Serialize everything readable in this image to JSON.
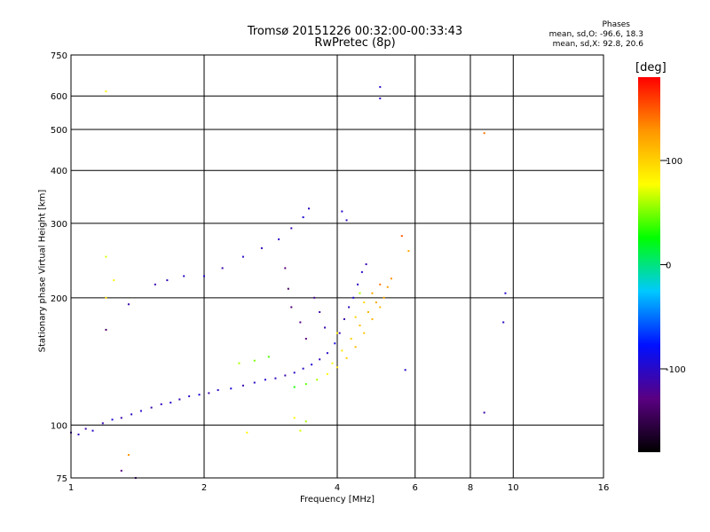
{
  "title_line1": "Tromsø 20151226 00:32:00-00:33:43",
  "title_line2": "RwPretec (8p)",
  "phases": {
    "title": "Phases",
    "o_line": "mean, sd,O: -96.6, 18.3",
    "x_line": "mean, sd,X: 92.8, 20.6"
  },
  "colorbar": {
    "unit": "[deg]",
    "ticks": [
      "100",
      "0",
      "-100"
    ],
    "tick_values": [
      100,
      0,
      -100
    ],
    "range": [
      -180,
      180
    ],
    "colors": [
      "#000000",
      "#5a0082",
      "#0010ff",
      "#00c8ff",
      "#00ff00",
      "#ffff00",
      "#ff9600",
      "#ff0000"
    ]
  },
  "chart_data": {
    "type": "scatter",
    "title": "Tromsø 20151226 00:32:00-00:33:43\nRwPretec (8p)",
    "xlabel": "Frequency [MHz]",
    "ylabel": "Stationary phase Virtual Height [km]",
    "x_scale": "log",
    "y_scale": "log",
    "xlim": [
      1,
      16
    ],
    "ylim": [
      75,
      750
    ],
    "x_ticks": [
      "1",
      "2",
      "4",
      "6",
      "8",
      "10",
      "16"
    ],
    "x_tick_values": [
      1,
      2,
      4,
      6,
      8,
      10,
      16
    ],
    "y_ticks": [
      "75",
      "100",
      "200",
      "300",
      "400",
      "500",
      "600",
      "750"
    ],
    "y_tick_values": [
      75,
      100,
      200,
      300,
      400,
      500,
      600,
      750
    ],
    "grid": true,
    "color_encodes": "phase [deg]",
    "series": [
      {
        "points": [
          [
            1.0,
            96,
            -110
          ],
          [
            1.04,
            95,
            -105
          ],
          [
            1.08,
            98,
            -112
          ],
          [
            1.12,
            97,
            -100
          ],
          [
            1.18,
            101,
            -108
          ],
          [
            1.24,
            103,
            -95
          ],
          [
            1.3,
            104,
            -110
          ],
          [
            1.37,
            106,
            -102
          ],
          [
            1.44,
            108,
            -98
          ],
          [
            1.52,
            110,
            -112
          ],
          [
            1.6,
            112,
            -104
          ],
          [
            1.68,
            113,
            -96
          ],
          [
            1.76,
            115,
            -108
          ],
          [
            1.85,
            117,
            -100
          ],
          [
            1.95,
            118,
            -92
          ],
          [
            2.05,
            119,
            -110
          ],
          [
            2.15,
            121,
            -102
          ],
          [
            2.3,
            122,
            -95
          ],
          [
            2.45,
            124,
            -108
          ],
          [
            2.6,
            126,
            -100
          ],
          [
            2.75,
            128,
            -97
          ],
          [
            2.9,
            129,
            -105
          ],
          [
            3.05,
            131,
            -110
          ],
          [
            3.2,
            133,
            -98
          ],
          [
            3.35,
            136,
            -102
          ],
          [
            3.5,
            139,
            -95
          ],
          [
            3.65,
            143,
            -108
          ],
          [
            3.8,
            148,
            -100
          ],
          [
            3.95,
            156,
            -92
          ],
          [
            4.05,
            165,
            -105
          ],
          [
            4.15,
            178,
            -110
          ],
          [
            4.25,
            190,
            -100
          ],
          [
            4.35,
            200,
            -96
          ],
          [
            4.45,
            215,
            -105
          ],
          [
            4.55,
            230,
            -100
          ],
          [
            4.65,
            240,
            -108
          ],
          [
            2.0,
            225,
            -100
          ],
          [
            2.2,
            235,
            -110
          ],
          [
            2.45,
            250,
            -98
          ],
          [
            2.7,
            262,
            -105
          ],
          [
            2.95,
            275,
            -100
          ],
          [
            3.15,
            292,
            -108
          ],
          [
            3.35,
            310,
            -96
          ],
          [
            3.45,
            325,
            -102
          ],
          [
            3.05,
            235,
            -130
          ],
          [
            3.1,
            210,
            -140
          ],
          [
            3.15,
            190,
            -135
          ],
          [
            3.3,
            175,
            -125
          ],
          [
            3.4,
            160,
            -130
          ],
          [
            3.55,
            200,
            -120
          ],
          [
            3.65,
            185,
            -115
          ],
          [
            3.75,
            170,
            -110
          ],
          [
            1.55,
            215,
            -110
          ],
          [
            1.65,
            220,
            -105
          ],
          [
            1.8,
            225,
            -100
          ],
          [
            1.2,
            168,
            -140
          ],
          [
            1.35,
            193,
            -110
          ],
          [
            4.1,
            320,
            -100
          ],
          [
            4.2,
            305,
            -105
          ],
          [
            5.0,
            630,
            -100
          ],
          [
            5.0,
            592,
            -100
          ],
          [
            9.6,
            205,
            -100
          ],
          [
            9.5,
            175,
            -100
          ],
          [
            8.6,
            107,
            -110
          ],
          [
            5.7,
            135,
            -100
          ],
          [
            1.3,
            78,
            -130
          ],
          [
            1.4,
            75,
            -120
          ]
        ]
      },
      {
        "points": [
          [
            3.2,
            123,
            30
          ],
          [
            3.4,
            125,
            45
          ],
          [
            3.6,
            128,
            60
          ],
          [
            3.8,
            132,
            80
          ],
          [
            4.0,
            137,
            95
          ],
          [
            4.2,
            144,
            100
          ],
          [
            4.4,
            153,
            110
          ],
          [
            4.6,
            165,
            105
          ],
          [
            4.8,
            178,
            115
          ],
          [
            5.0,
            190,
            110
          ],
          [
            5.1,
            200,
            120
          ],
          [
            5.2,
            212,
            125
          ],
          [
            5.3,
            222,
            130
          ],
          [
            3.9,
            140,
            75
          ],
          [
            4.1,
            150,
            90
          ],
          [
            4.3,
            160,
            100
          ],
          [
            4.5,
            172,
            110
          ],
          [
            4.7,
            185,
            115
          ],
          [
            4.9,
            195,
            120
          ],
          [
            2.4,
            140,
            60
          ],
          [
            2.6,
            142,
            50
          ],
          [
            2.8,
            145,
            40
          ],
          [
            1.2,
            250,
            70
          ],
          [
            1.25,
            220,
            80
          ],
          [
            1.2,
            200,
            90
          ],
          [
            1.2,
            615,
            80
          ],
          [
            8.6,
            490,
            140
          ],
          [
            5.6,
            280,
            150
          ],
          [
            5.8,
            258,
            120
          ],
          [
            3.2,
            104,
            80
          ],
          [
            3.3,
            97,
            70
          ],
          [
            3.4,
            102,
            60
          ],
          [
            2.5,
            96,
            80
          ],
          [
            1.35,
            85,
            130
          ],
          [
            4.0,
            165,
            85
          ],
          [
            4.4,
            180,
            100
          ],
          [
            4.6,
            195,
            95
          ],
          [
            4.8,
            205,
            120
          ],
          [
            5.0,
            215,
            140
          ],
          [
            4.5,
            205,
            60
          ]
        ]
      }
    ]
  }
}
